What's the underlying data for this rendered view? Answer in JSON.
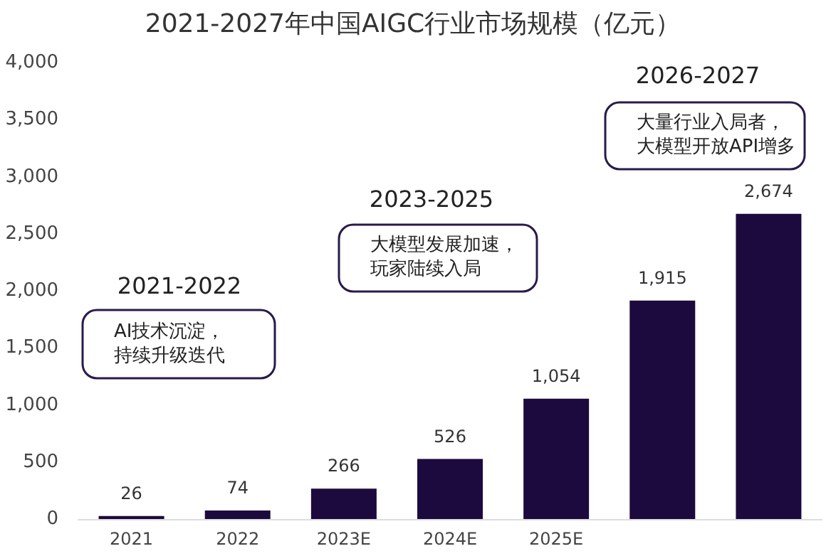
{
  "chart_data": {
    "type": "bar",
    "title": "2021-2027年中国AIGC行业市场规模（亿元）",
    "categories": [
      "2021",
      "2022",
      "2023E",
      "2024E",
      "2025E",
      null,
      null
    ],
    "values": [
      26,
      74,
      266,
      526,
      1054,
      1915,
      2674
    ],
    "value_labels": [
      "26",
      "74",
      "266",
      "526",
      "1,054",
      "1,915",
      "2,674"
    ],
    "color": "#1c0a3e",
    "ylim": [
      0,
      4000
    ],
    "yticks": [
      0,
      500,
      {
        "value": 1000,
        "label": "1,000"
      },
      {
        "value": 1500,
        "label": "1,500"
      },
      {
        "value": 2000,
        "label": "2,000"
      },
      {
        "value": 2500,
        "label": "2,500"
      },
      {
        "value": 3000,
        "label": "3,000"
      },
      {
        "value": 3500,
        "label": "3,500"
      },
      {
        "value": 4000,
        "label": "4,000"
      }
    ],
    "grid": false,
    "annotations": [
      "2021-2022",
      "AI技术沉淀，",
      "持续升级迭代",
      "2023-2025",
      "大模型发展加速，",
      "玩家陆续入局",
      "2026-2027",
      "大量行业入局者，",
      "大模型开放API增多"
    ]
  }
}
